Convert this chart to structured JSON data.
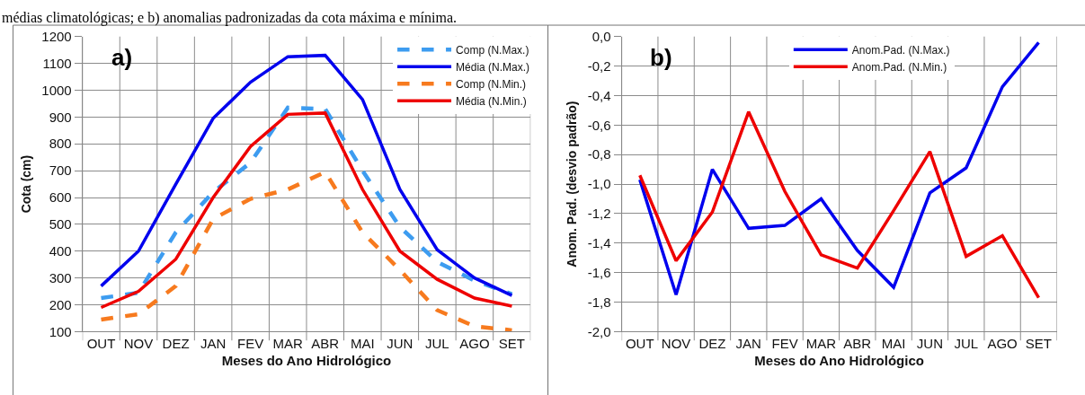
{
  "chart_data": [
    {
      "type": "line",
      "xlabel": "Meses do Ano Hidrológico",
      "ylabel": "Cota (cm)",
      "categories": [
        "OUT",
        "NOV",
        "DEZ",
        "JAN",
        "FEV",
        "MAR",
        "ABR",
        "MAI",
        "JUN",
        "JUL",
        "AGO",
        "SET"
      ],
      "series": [
        {
          "name": "Comp (N.Max.)",
          "color": "#3d9cf0",
          "line_style": "dashed",
          "values": [
            225,
            245,
            470,
            620,
            730,
            935,
            930,
            700,
            490,
            360,
            290,
            240
          ]
        },
        {
          "name": "Média (N.Max.)",
          "color": "#0000ee",
          "line_style": "solid",
          "values": [
            270,
            400,
            650,
            895,
            1030,
            1125,
            1130,
            965,
            630,
            405,
            300,
            235
          ]
        },
        {
          "name": "Comp (N.Min.)",
          "color": "#f77a1e",
          "line_style": "dashed",
          "values": [
            145,
            165,
            270,
            520,
            595,
            630,
            695,
            470,
            330,
            180,
            120,
            105
          ]
        },
        {
          "name": "Média (N.Min.)",
          "color": "#ee0000",
          "line_style": "solid",
          "values": [
            190,
            250,
            370,
            600,
            790,
            910,
            915,
            630,
            400,
            295,
            225,
            195
          ]
        }
      ],
      "ylim": [
        100,
        1200
      ],
      "yticks": [
        100,
        200,
        300,
        400,
        500,
        600,
        700,
        800,
        900,
        1000,
        1100,
        1200
      ],
      "grid": true,
      "legend": "top right",
      "marker": "none",
      "annotations": [
        "médias climatológicas; e b) anomalias padronizadas da cota máxima e mínima.",
        "a)"
      ]
    },
    {
      "type": "line",
      "xlabel": "Meses do Ano Hidrológico",
      "ylabel": "Anom. Pad. (desvio padrão)",
      "categories": [
        "OUT",
        "NOV",
        "DEZ",
        "JAN",
        "FEV",
        "MAR",
        "ABR",
        "MAI",
        "JUN",
        "JUL",
        "AGO",
        "SET"
      ],
      "series": [
        {
          "name": "Anom.Pad. (N.Max.)",
          "color": "#0000ee",
          "line_style": "solid",
          "values": [
            -0.97,
            -1.75,
            -0.9,
            -1.3,
            -1.28,
            -1.1,
            -1.45,
            -1.7,
            -1.06,
            -0.89,
            -0.34,
            -0.04
          ]
        },
        {
          "name": "Anom.Pad. (N.Min.)",
          "color": "#ee0000",
          "line_style": "solid",
          "values": [
            -0.94,
            -1.52,
            -1.19,
            -0.51,
            -1.05,
            -1.48,
            -1.57,
            -1.18,
            -0.78,
            -1.49,
            -1.35,
            -1.77
          ]
        }
      ],
      "ylim": [
        -2.0,
        0.0
      ],
      "yticks": [
        {
          "value": -2.0,
          "label": "-2,0"
        },
        {
          "value": -1.8,
          "label": "-1,8"
        },
        {
          "value": -1.6,
          "label": "-1,6"
        },
        {
          "value": -1.4,
          "label": "-1,4"
        },
        {
          "value": -1.2,
          "label": "-1,2"
        },
        {
          "value": -1.0,
          "label": "-1,0"
        },
        {
          "value": -0.8,
          "label": "-0,8"
        },
        {
          "value": -0.6,
          "label": "-0,6"
        },
        {
          "value": -0.4,
          "label": "-0,4"
        },
        {
          "value": -0.2,
          "label": "-0,2"
        },
        {
          "value": 0.0,
          "label": "0,0"
        }
      ],
      "grid": true,
      "legend": "top",
      "marker": "none",
      "annotations": [
        "b)"
      ]
    }
  ]
}
